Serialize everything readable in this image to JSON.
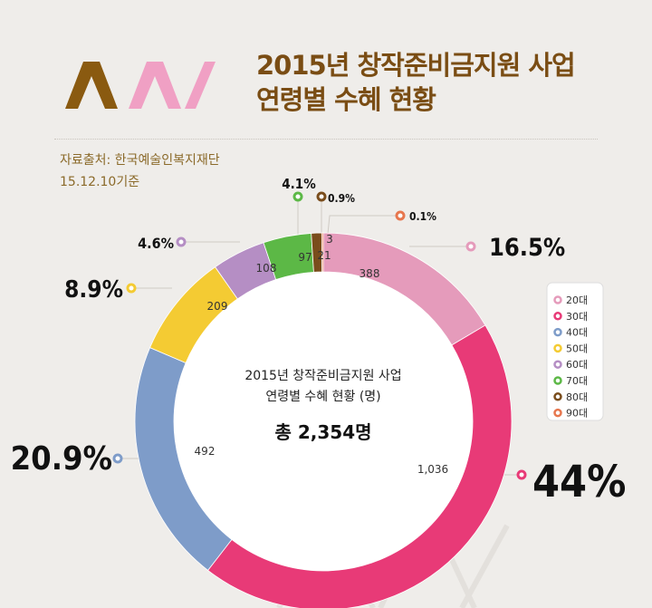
{
  "title": {
    "line1": "2015년 창작준비금지원 사업",
    "line2": "연령별 수혜 현황"
  },
  "source": {
    "line1": "자료출처: 한국예술인복지재단",
    "line2": "15.12.10기준"
  },
  "chart_data": {
    "type": "donut",
    "center_title_line1": "2015년 창작준비금지원 사업",
    "center_title_line2": "연령별 수혜 현황 (명)",
    "total_label": "총 2,354명",
    "categories": [
      "20대",
      "30대",
      "40대",
      "50대",
      "60대",
      "70대",
      "80대",
      "90대"
    ],
    "values": [
      388,
      1036,
      492,
      209,
      108,
      97,
      21,
      3
    ],
    "percent_labels": [
      "16.5%",
      "44%",
      "20.9%",
      "8.9%",
      "4.6%",
      "4.1%",
      "0.9%",
      "0.1%"
    ],
    "colors": [
      "#e59bbb",
      "#e83a77",
      "#7e9cc9",
      "#f4cb33",
      "#b58ec4",
      "#5cb846",
      "#7a4d1c",
      "#e7774e"
    ],
    "legend_position": "right"
  }
}
